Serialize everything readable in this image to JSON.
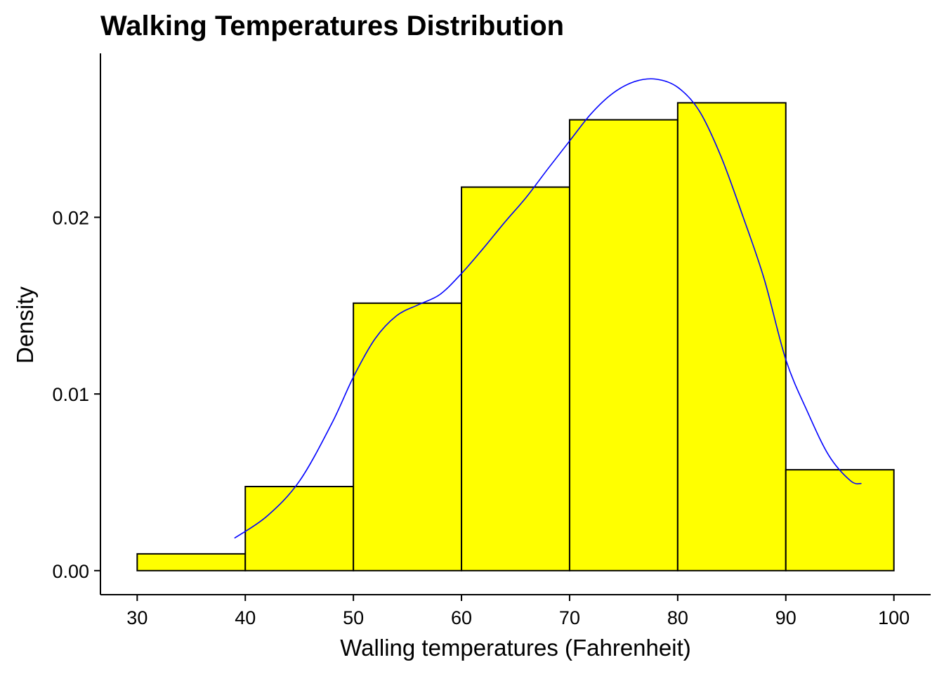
{
  "chart_data": {
    "type": "bar",
    "title": "Walking Temperatures Distribution",
    "xlabel": "Walling temperatures (Fahrenheit)",
    "ylabel": "Density",
    "bins": [
      {
        "from": 30,
        "to": 40,
        "value": 0.00095
      },
      {
        "from": 40,
        "to": 50,
        "value": 0.00476
      },
      {
        "from": 50,
        "to": 60,
        "value": 0.01514
      },
      {
        "from": 60,
        "to": 70,
        "value": 0.02171
      },
      {
        "from": 70,
        "to": 80,
        "value": 0.02552
      },
      {
        "from": 80,
        "to": 90,
        "value": 0.02648
      },
      {
        "from": 90,
        "to": 100,
        "value": 0.00571
      }
    ],
    "density_curve": {
      "x": [
        39,
        42,
        45,
        48,
        50,
        52,
        54,
        56,
        58,
        60,
        62,
        64,
        66,
        68,
        70,
        72,
        74,
        76,
        78,
        80,
        82,
        84,
        86,
        88,
        90,
        92,
        94,
        96,
        97
      ],
      "y": [
        0.00184,
        0.00308,
        0.00506,
        0.00833,
        0.01096,
        0.01312,
        0.01443,
        0.01505,
        0.01563,
        0.01682,
        0.01823,
        0.01972,
        0.02114,
        0.02275,
        0.02432,
        0.02587,
        0.02702,
        0.02768,
        0.02782,
        0.02736,
        0.02602,
        0.02345,
        0.02011,
        0.01651,
        0.01195,
        0.009,
        0.0065,
        0.00508,
        0.00493
      ]
    },
    "xlim": [
      26.6,
      103.4
    ],
    "ylim": [
      -0.00136,
      0.02928
    ],
    "x_ticks": [
      "30",
      "40",
      "50",
      "60",
      "70",
      "80",
      "90",
      "100"
    ],
    "y_ticks": [
      "0.00",
      "0.01",
      "0.02"
    ],
    "grid": false,
    "legend": "none",
    "colors": {
      "bar_fill": "#ffff00",
      "bar_outline": "#000000",
      "curve": "#0000ff"
    }
  }
}
